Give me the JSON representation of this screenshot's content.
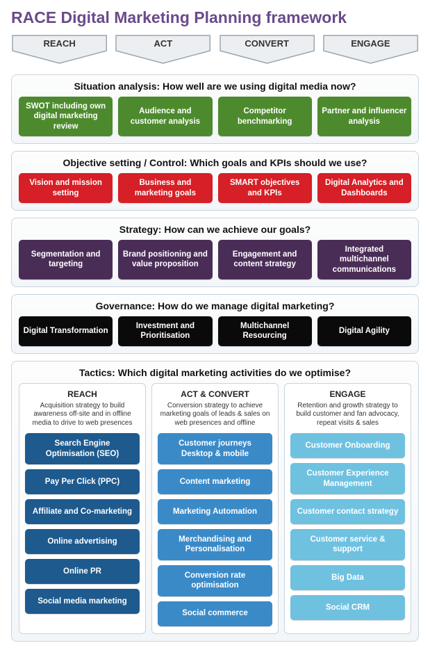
{
  "title": "RACE Digital Marketing Planning framework",
  "chevron_fill": "#eceff2",
  "chevron_stroke": "#9aa6b2",
  "chevrons": [
    "REACH",
    "ACT",
    "CONVERT",
    "ENGAGE"
  ],
  "sections": [
    {
      "title": "Situation analysis: How well are we using digital media now?",
      "color": "#4d8a2e",
      "cards": [
        "SWOT including own digital marketing review",
        "Audience and customer analysis",
        "Competitor benchmarking",
        "Partner and influencer analysis"
      ]
    },
    {
      "title": "Objective setting / Control: Which goals and KPIs should we use?",
      "color": "#d61f26",
      "cards": [
        "Vision and mission setting",
        "Business and marketing goals",
        "SMART objectives and KPIs",
        "Digital Analytics and Dashboards"
      ]
    },
    {
      "title": "Strategy: How can we achieve our goals?",
      "color": "#4a2d57",
      "cards": [
        "Segmentation and targeting",
        "Brand positioning and value proposition",
        "Engagement and content strategy",
        "Integrated multichannel communications"
      ]
    },
    {
      "title": "Governance: How do we manage digital marketing?",
      "color": "#0a0a0a",
      "cards": [
        "Digital Transformation",
        "Investment and Prioritisation",
        "Multichannel Resourcing",
        "Digital Agility"
      ]
    }
  ],
  "tactics": {
    "title": "Tactics: Which digital marketing activities do we optimise?",
    "columns": [
      {
        "title": "REACH",
        "desc": "Acquisition strategy to build awareness off-site and in offline media to drive to web presences",
        "color": "#1e5a8e",
        "cards": [
          "Search Engine Optimisation (SEO)",
          "Pay Per Click (PPC)",
          "Affiliate and Co-marketing",
          "Online advertising",
          "Online PR",
          "Social media marketing"
        ]
      },
      {
        "title": "ACT & CONVERT",
        "desc": "Conversion strategy to achieve marketing goals of leads & sales on web presences and offline",
        "color": "#3a8ac8",
        "cards": [
          "Customer journeys Desktop & mobile",
          "Content marketing",
          "Marketing Automation",
          "Merchandising and Personalisation",
          "Conversion rate optimisation",
          "Social commerce"
        ]
      },
      {
        "title": "ENGAGE",
        "desc": "Retention and growth strategy to build customer and fan advocacy, repeat visits & sales",
        "color": "#6fc1e0",
        "cards": [
          "Customer Onboarding",
          "Customer Experience Management",
          "Customer contact strategy",
          "Customer service & support",
          "Big Data",
          "Social CRM"
        ]
      }
    ]
  }
}
